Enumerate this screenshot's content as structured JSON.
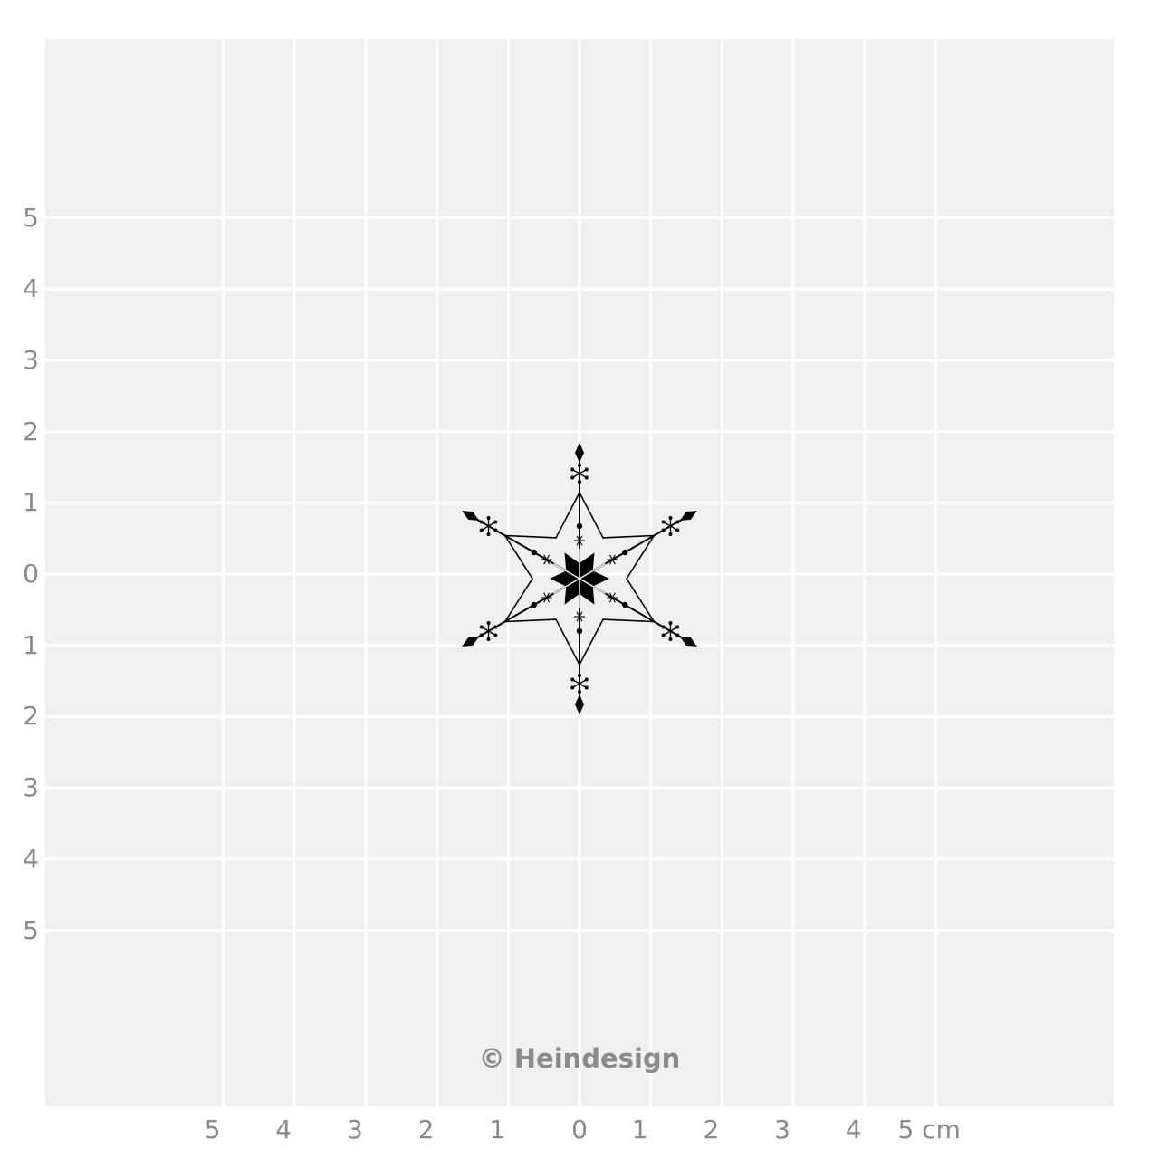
{
  "colors": {
    "background": "#f0f0f0",
    "grid": "#ffffff",
    "labels": "#8a8a8a",
    "motif": "#000000"
  },
  "y_labels": [
    "5",
    "4",
    "3",
    "2",
    "1",
    "0",
    "1",
    "2",
    "3",
    "4",
    "5"
  ],
  "x_labels": [
    "5",
    "4",
    "3",
    "2",
    "1",
    "0",
    "1",
    "2",
    "3",
    "4",
    "5 cm"
  ],
  "copyright": "© Heindesign",
  "motif": "snowflake-star-icon"
}
